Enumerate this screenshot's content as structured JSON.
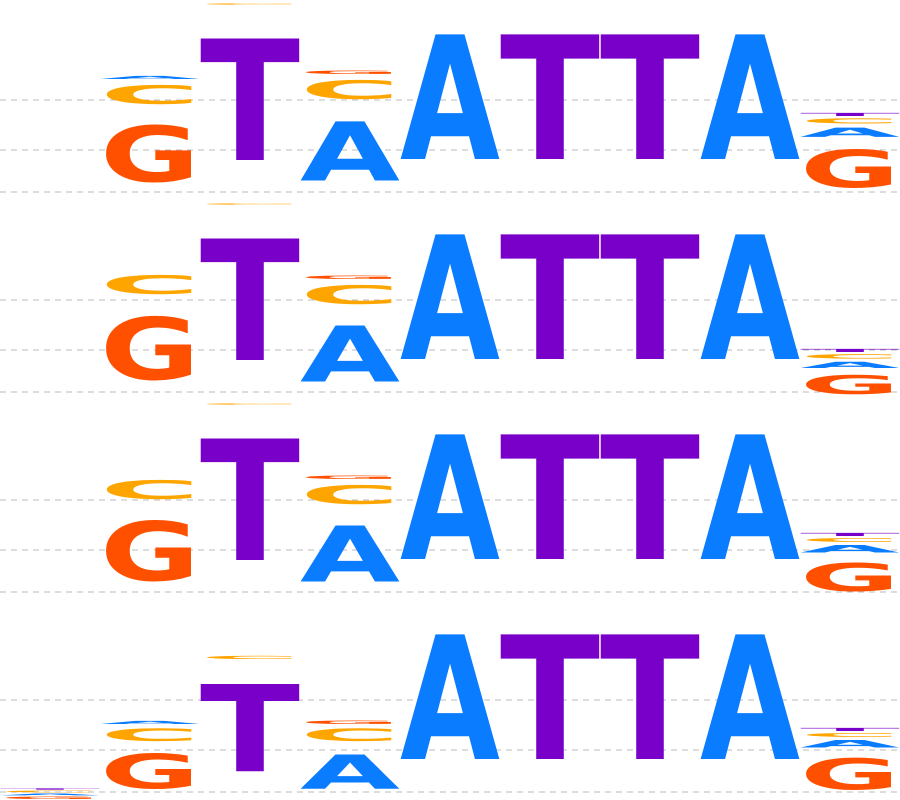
{
  "colors": {
    "A": "#0a7cff",
    "C": "#ffa500",
    "G": "#ff5000",
    "T": "#7800c8",
    "grid": "#bbbbbb"
  },
  "logos": [
    {
      "positions": [
        [
          {
            "base": "G",
            "height": 0.9
          },
          {
            "base": "C",
            "height": 0.3
          },
          {
            "base": "A",
            "height": 0.05
          }
        ],
        [
          {
            "base": "T",
            "height": 1.95
          },
          {
            "base": "C",
            "height": 0.02
          }
        ],
        [
          {
            "base": "A",
            "height": 0.95
          },
          {
            "base": "C",
            "height": 0.3
          },
          {
            "base": "G",
            "height": 0.05
          }
        ],
        [
          {
            "base": "A",
            "height": 2.0
          }
        ],
        [
          {
            "base": "T",
            "height": 2.0
          }
        ],
        [
          {
            "base": "T",
            "height": 2.0
          }
        ],
        [
          {
            "base": "A",
            "height": 2.0
          }
        ],
        [
          {
            "base": "G",
            "height": 0.6
          },
          {
            "base": "A",
            "height": 0.15
          },
          {
            "base": "C",
            "height": 0.08
          },
          {
            "base": "T",
            "height": 0.05
          }
        ]
      ]
    },
    {
      "positions": [
        [
          {
            "base": "G",
            "height": 1.0
          },
          {
            "base": "C",
            "height": 0.3
          }
        ],
        [
          {
            "base": "T",
            "height": 1.95
          },
          {
            "base": "C",
            "height": 0.02
          }
        ],
        [
          {
            "base": "A",
            "height": 0.9
          },
          {
            "base": "C",
            "height": 0.3
          },
          {
            "base": "G",
            "height": 0.05
          }
        ],
        [
          {
            "base": "A",
            "height": 2.0
          }
        ],
        [
          {
            "base": "T",
            "height": 2.0
          }
        ],
        [
          {
            "base": "T",
            "height": 2.0
          }
        ],
        [
          {
            "base": "A",
            "height": 2.0
          }
        ],
        [
          {
            "base": "G",
            "height": 0.3
          },
          {
            "base": "A",
            "height": 0.1
          },
          {
            "base": "C",
            "height": 0.07
          },
          {
            "base": "T",
            "height": 0.05
          }
        ]
      ]
    },
    {
      "positions": [
        [
          {
            "base": "G",
            "height": 0.95
          },
          {
            "base": "C",
            "height": 0.3
          }
        ],
        [
          {
            "base": "T",
            "height": 1.95
          },
          {
            "base": "C",
            "height": 0.02
          }
        ],
        [
          {
            "base": "A",
            "height": 0.9
          },
          {
            "base": "C",
            "height": 0.3
          },
          {
            "base": "G",
            "height": 0.05
          }
        ],
        [
          {
            "base": "A",
            "height": 2.0
          }
        ],
        [
          {
            "base": "T",
            "height": 2.0
          }
        ],
        [
          {
            "base": "T",
            "height": 2.0
          }
        ],
        [
          {
            "base": "A",
            "height": 2.0
          }
        ],
        [
          {
            "base": "G",
            "height": 0.45
          },
          {
            "base": "A",
            "height": 0.12
          },
          {
            "base": "C",
            "height": 0.06
          },
          {
            "base": "T",
            "height": 0.05
          }
        ]
      ]
    },
    {
      "positions": [
        [
          {
            "base": "G",
            "height": 0.04
          },
          {
            "base": "A",
            "height": 0.03
          },
          {
            "base": "C",
            "height": 0.03
          },
          {
            "base": "T",
            "height": 0.02
          }
        ],
        [
          {
            "base": "G",
            "height": 0.55
          },
          {
            "base": "C",
            "height": 0.2
          },
          {
            "base": "A",
            "height": 0.05
          }
        ],
        [
          {
            "base": "T",
            "height": 1.4
          },
          {
            "base": "C",
            "height": 0.05
          }
        ],
        [
          {
            "base": "A",
            "height": 0.55
          },
          {
            "base": "C",
            "height": 0.2
          },
          {
            "base": "G",
            "height": 0.05
          }
        ],
        [
          {
            "base": "A",
            "height": 2.0
          }
        ],
        [
          {
            "base": "T",
            "height": 2.0
          }
        ],
        [
          {
            "base": "T",
            "height": 2.0
          }
        ],
        [
          {
            "base": "A",
            "height": 2.0
          }
        ],
        [
          {
            "base": "G",
            "height": 0.5
          },
          {
            "base": "A",
            "height": 0.12
          },
          {
            "base": "C",
            "height": 0.06
          },
          {
            "base": "T",
            "height": 0.05
          }
        ]
      ]
    }
  ]
}
